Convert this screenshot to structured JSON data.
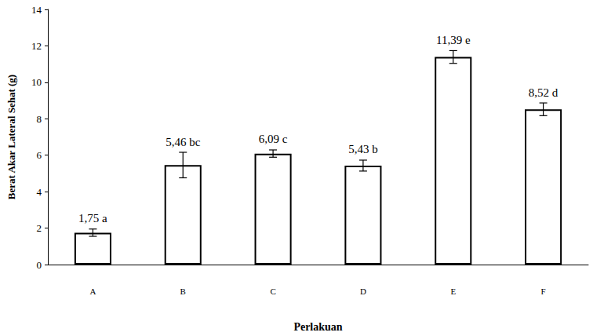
{
  "chart_data": {
    "type": "bar",
    "x_label": "Perlakuan",
    "y_label": "Berat Akar Lateral Sehat (g)",
    "categories": [
      "A",
      "B",
      "C",
      "D",
      "E",
      "F"
    ],
    "values": [
      1.75,
      5.46,
      6.09,
      5.43,
      11.39,
      8.52
    ],
    "value_labels": [
      "1,75 a",
      "5,46 bc",
      "6,09 c",
      "5,43 b",
      "11,39 e",
      "8,52 d"
    ],
    "errors": [
      0.2,
      0.7,
      0.2,
      0.3,
      0.35,
      0.35
    ],
    "color": "#ffffff",
    "ylim": [
      0,
      14
    ],
    "yticks": [
      0,
      2,
      4,
      6,
      8,
      10,
      12,
      14
    ],
    "grid": false,
    "data_labels": true
  }
}
